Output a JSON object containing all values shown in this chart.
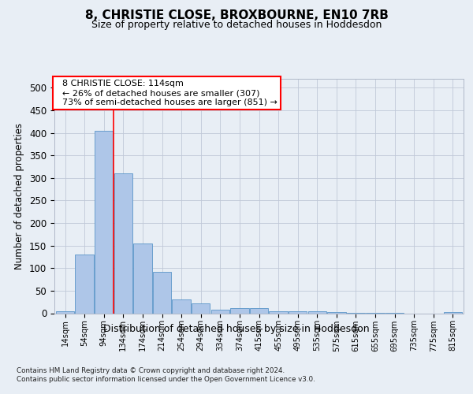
{
  "title1": "8, CHRISTIE CLOSE, BROXBOURNE, EN10 7RB",
  "title2": "Size of property relative to detached houses in Hoddesdon",
  "xlabel": "Distribution of detached houses by size in Hoddesdon",
  "ylabel": "Number of detached properties",
  "footnote1": "Contains HM Land Registry data © Crown copyright and database right 2024.",
  "footnote2": "Contains public sector information licensed under the Open Government Licence v3.0.",
  "bar_labels": [
    "14sqm",
    "54sqm",
    "94sqm",
    "134sqm",
    "174sqm",
    "214sqm",
    "254sqm",
    "294sqm",
    "334sqm",
    "374sqm",
    "415sqm",
    "455sqm",
    "495sqm",
    "535sqm",
    "575sqm",
    "615sqm",
    "655sqm",
    "695sqm",
    "735sqm",
    "775sqm",
    "815sqm"
  ],
  "bar_values": [
    5,
    130,
    405,
    310,
    155,
    92,
    30,
    22,
    7,
    12,
    12,
    5,
    5,
    5,
    2,
    1,
    1,
    1,
    0,
    0,
    2
  ],
  "bar_color": "#aec6e8",
  "bar_edge_color": "#5a96c8",
  "red_line_x": 2.5,
  "annotation_title": "8 CHRISTIE CLOSE: 114sqm",
  "annotation_line2": "← 26% of detached houses are smaller (307)",
  "annotation_line3": "73% of semi-detached houses are larger (851) →",
  "ylim": [
    0,
    520
  ],
  "yticks": [
    0,
    50,
    100,
    150,
    200,
    250,
    300,
    350,
    400,
    450,
    500
  ],
  "background_color": "#e8eef5",
  "plot_bg_color": "#e8eef5",
  "grid_color": "#c0c8d8"
}
